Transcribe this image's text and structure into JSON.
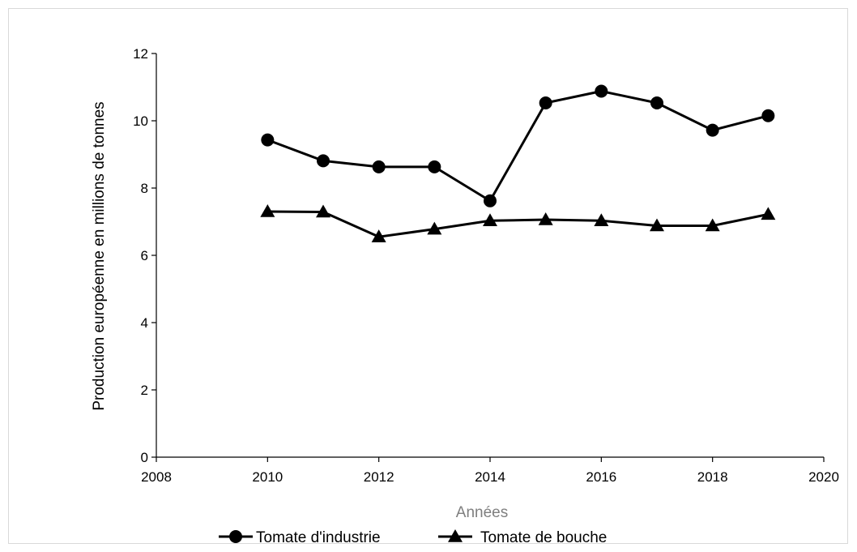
{
  "chart_data": {
    "type": "line",
    "title": "",
    "xlabel": "Années",
    "ylabel": "Production européenne  en millions de tonnes",
    "xlim": [
      2008,
      2020
    ],
    "ylim": [
      0,
      12
    ],
    "xticks": [
      2008,
      2010,
      2012,
      2014,
      2016,
      2018,
      2020
    ],
    "yticks": [
      0,
      2,
      4,
      6,
      8,
      10,
      12
    ],
    "x": [
      2010,
      2011,
      2012,
      2013,
      2014,
      2015,
      2016,
      2017,
      2018,
      2019
    ],
    "grid": false,
    "legend_position": "bottom",
    "series": [
      {
        "name": "Tomate d'industrie",
        "marker": "circle",
        "color": "#000000",
        "values": [
          9.43,
          8.81,
          8.63,
          8.63,
          7.62,
          10.53,
          10.88,
          10.53,
          9.72,
          10.15
        ]
      },
      {
        "name": "Tomate de bouche",
        "marker": "triangle",
        "color": "#000000",
        "values": [
          7.3,
          7.29,
          6.55,
          6.78,
          7.03,
          7.06,
          7.03,
          6.88,
          6.88,
          7.22
        ]
      }
    ]
  }
}
